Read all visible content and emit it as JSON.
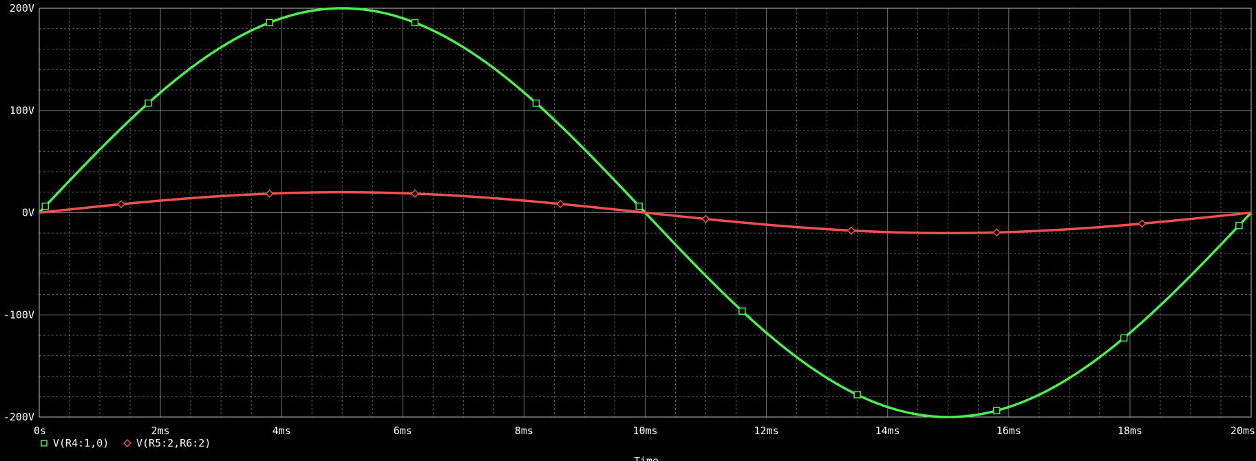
{
  "chart_data": {
    "type": "line",
    "xlabel": "Time",
    "ylabel": "",
    "title": "",
    "xlim": [
      0,
      20
    ],
    "ylim": [
      -200,
      200
    ],
    "x_unit": "ms",
    "y_unit": "V",
    "x_ticks": [
      0,
      2,
      4,
      6,
      8,
      10,
      12,
      14,
      16,
      18,
      20
    ],
    "x_tick_labels": [
      "0s",
      "2ms",
      "4ms",
      "6ms",
      "8ms",
      "10ms",
      "12ms",
      "14ms",
      "16ms",
      "18ms",
      "20ms"
    ],
    "y_ticks": [
      200,
      100,
      0,
      -100,
      -200
    ],
    "y_tick_labels": [
      "200V",
      "100V",
      "0V",
      "-100V",
      "-200V"
    ],
    "grid": true,
    "background": "#000000",
    "grid_color": "#8a8a8a",
    "legend_position": "bottom-left",
    "series": [
      {
        "name": "V(R4:1,0)",
        "color": "#4cf04c",
        "marker": "square",
        "shape": "sine",
        "amplitude": 200,
        "frequency_hz": 50,
        "x_ms": [
          0,
          1,
          2,
          3,
          4,
          5,
          6,
          7,
          8,
          9,
          10,
          11,
          12,
          13,
          14,
          15,
          16,
          17,
          18,
          19,
          20
        ],
        "values": [
          0,
          61.8,
          117.6,
          161.8,
          190.2,
          200,
          190.2,
          161.8,
          117.6,
          61.8,
          0,
          -61.8,
          -117.6,
          -161.8,
          -190.2,
          -200,
          -190.2,
          -161.8,
          -117.6,
          -61.8,
          0
        ],
        "marker_x_ms": [
          0.1,
          1.8,
          3.8,
          6.2,
          8.2,
          9.9,
          11.6,
          13.5,
          15.8,
          17.9,
          19.8
        ]
      },
      {
        "name": "V(R5:2,R6:2)",
        "color": "#f05050",
        "marker": "diamond",
        "shape": "sine",
        "amplitude": 20,
        "frequency_hz": 50,
        "x_ms": [
          0,
          1,
          2,
          3,
          4,
          5,
          6,
          7,
          8,
          9,
          10,
          11,
          12,
          13,
          14,
          15,
          16,
          17,
          18,
          19,
          20
        ],
        "values": [
          0,
          6.18,
          11.76,
          16.18,
          19.02,
          20,
          19.02,
          16.18,
          11.76,
          6.18,
          0,
          -6.18,
          -11.76,
          -16.18,
          -19.02,
          -20,
          -19.02,
          -16.18,
          -11.76,
          -6.18,
          0
        ],
        "marker_x_ms": [
          1.35,
          3.8,
          6.2,
          8.6,
          11.0,
          13.4,
          15.8,
          18.2
        ]
      }
    ]
  }
}
